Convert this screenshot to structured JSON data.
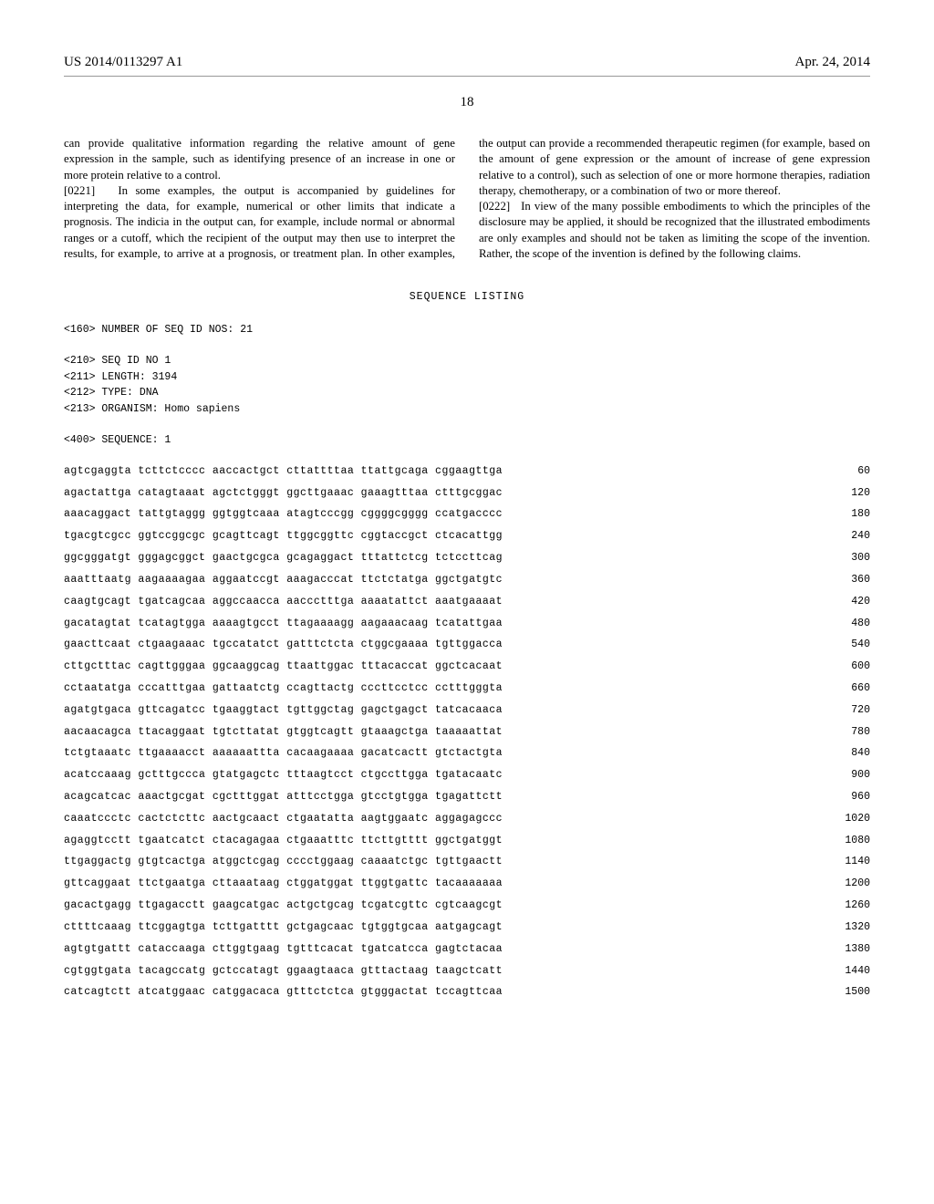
{
  "header": {
    "patent_id": "US 2014/0113297 A1",
    "date": "Apr. 24, 2014",
    "page_no": "18"
  },
  "paragraphs": {
    "p1": "can provide qualitative information regarding the relative amount of gene expression in the sample, such as identifying presence of an increase in one or more protein relative to a control.",
    "p2_num": "[0221]",
    "p2": "In some examples, the output is accompanied by guidelines for interpreting the data, for example, numerical or other limits that indicate a prognosis. The indicia in the output can, for example, include normal or abnormal ranges or a cutoff, which the recipient of the output may then use to interpret the results, for example, to arrive at a prognosis, or treatment plan. In other examples, the output can provide a recommended therapeutic regimen (for example, based on the amount of gene expression or the amount of increase of gene expression relative to a control), such as selection of one or more hormone therapies, radiation therapy, chemotherapy, or a combination of two or more thereof.",
    "p3_num": "[0222]",
    "p3": "In view of the many possible embodiments to which the principles of the disclosure may be applied, it should be recognized that the illustrated embodiments are only examples and should not be taken as limiting the scope of the invention. Rather, the scope of the invention is defined by the following claims."
  },
  "sequence": {
    "title": "SEQUENCE LISTING",
    "meta160": "<160> NUMBER OF SEQ ID NOS: 21",
    "meta210": "<210> SEQ ID NO 1",
    "meta211": "<211> LENGTH: 3194",
    "meta212": "<212> TYPE: DNA",
    "meta213": "<213> ORGANISM: Homo sapiens",
    "meta400": "<400> SEQUENCE: 1",
    "rows": [
      {
        "seq": "agtcgaggta tcttctcccc aaccactgct cttattttaa ttattgcaga cggaagttga",
        "n": "60"
      },
      {
        "seq": "agactattga catagtaaat agctctgggt ggcttgaaac gaaagtttaa ctttgcggac",
        "n": "120"
      },
      {
        "seq": "aaacaggact tattgtaggg ggtggtcaaa atagtcccgg cggggcgggg ccatgacccc",
        "n": "180"
      },
      {
        "seq": "tgacgtcgcc ggtccggcgc gcagttcagt ttggcggttc cggtaccgct ctcacattgg",
        "n": "240"
      },
      {
        "seq": "ggcgggatgt gggagcggct gaactgcgca gcagaggact tttattctcg tctccttcag",
        "n": "300"
      },
      {
        "seq": "aaatttaatg aagaaaagaa aggaatccgt aaagacccat ttctctatga ggctgatgtc",
        "n": "360"
      },
      {
        "seq": "caagtgcagt tgatcagcaa aggccaacca aaccctttga aaaatattct aaatgaaaat",
        "n": "420"
      },
      {
        "seq": "gacatagtat tcatagtgga aaaagtgcct ttagaaaagg aagaaacaag tcatattgaa",
        "n": "480"
      },
      {
        "seq": "gaacttcaat ctgaagaaac tgccatatct gatttctcta ctggcgaaaa tgttggacca",
        "n": "540"
      },
      {
        "seq": "cttgctttac cagttgggaa ggcaaggcag ttaattggac tttacaccat ggctcacaat",
        "n": "600"
      },
      {
        "seq": "cctaatatga cccatttgaa gattaatctg ccagttactg cccttcctcc cctttgggta",
        "n": "660"
      },
      {
        "seq": "agatgtgaca gttcagatcc tgaaggtact tgttggctag gagctgagct tatcacaaca",
        "n": "720"
      },
      {
        "seq": "aacaacagca ttacaggaat tgtcttatat gtggtcagtt gtaaagctga taaaaattat",
        "n": "780"
      },
      {
        "seq": "tctgtaaatc ttgaaaacct aaaaaattta cacaagaaaa gacatcactt gtctactgta",
        "n": "840"
      },
      {
        "seq": "acatccaaag gctttgccca gtatgagctc tttaagtcct ctgccttgga tgatacaatc",
        "n": "900"
      },
      {
        "seq": "acagcatcac aaactgcgat cgctttggat atttcctgga gtcctgtgga tgagattctt",
        "n": "960"
      },
      {
        "seq": "caaatccctc cactctcttc aactgcaact ctgaatatta aagtggaatc aggagagccc",
        "n": "1020"
      },
      {
        "seq": "agaggtcctt tgaatcatct ctacagagaa ctgaaatttc ttcttgtttt ggctgatggt",
        "n": "1080"
      },
      {
        "seq": "ttgaggactg gtgtcactga atggctcgag cccctggaag caaaatctgc tgttgaactt",
        "n": "1140"
      },
      {
        "seq": "gttcaggaat ttctgaatga cttaaataag ctggatggat ttggtgattc tacaaaaaaa",
        "n": "1200"
      },
      {
        "seq": "gacactgagg ttgagacctt gaagcatgac actgctgcag tcgatcgttc cgtcaagcgt",
        "n": "1260"
      },
      {
        "seq": "cttttcaaag ttcggagtga tcttgatttt gctgagcaac tgtggtgcaa aatgagcagt",
        "n": "1320"
      },
      {
        "seq": "agtgtgattt cataccaaga cttggtgaag tgtttcacat tgatcatcca gagtctacaa",
        "n": "1380"
      },
      {
        "seq": "cgtggtgata tacagccatg gctccatagt ggaagtaaca gtttactaag taagctcatt",
        "n": "1440"
      },
      {
        "seq": "catcagtctt atcatggaac catggacaca gtttctctca gtgggactat tccagttcaa",
        "n": "1500"
      }
    ]
  }
}
